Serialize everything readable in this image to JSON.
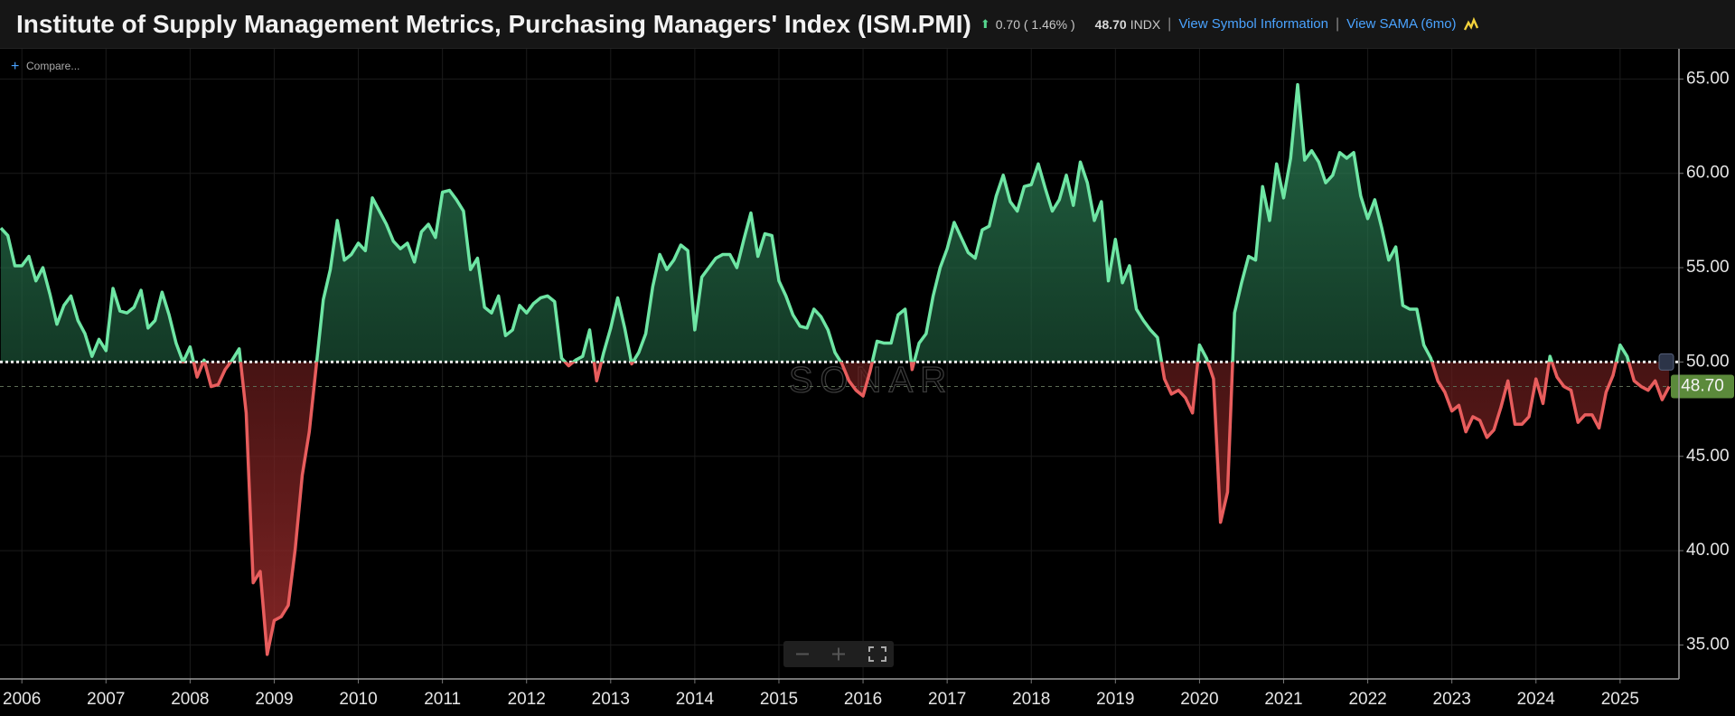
{
  "header": {
    "title": "Institute of Supply Management Metrics, Purchasing Managers' Index (ISM.PMI)",
    "change": "0.70 ( 1.46% )",
    "last": "48.70",
    "unit": "INDX",
    "links": [
      "View Symbol Information",
      "View SAMA (6mo)"
    ]
  },
  "compare": "Compare...",
  "chart_data": {
    "type": "line",
    "watermark": "SONAR",
    "x": [
      "2005-10",
      "2005-11",
      "2005-12",
      "2006-01",
      "2006-02",
      "2006-03",
      "2006-04",
      "2006-05",
      "2006-06",
      "2006-07",
      "2006-08",
      "2006-09",
      "2006-10",
      "2006-11",
      "2006-12",
      "2007-01",
      "2007-02",
      "2007-03",
      "2007-04",
      "2007-05",
      "2007-06",
      "2007-07",
      "2007-08",
      "2007-09",
      "2007-10",
      "2007-11",
      "2007-12",
      "2008-01",
      "2008-02",
      "2008-03",
      "2008-04",
      "2008-05",
      "2008-06",
      "2008-07",
      "2008-08",
      "2008-09",
      "2008-10",
      "2008-11",
      "2008-12",
      "2009-01",
      "2009-02",
      "2009-03",
      "2009-04",
      "2009-05",
      "2009-06",
      "2009-07",
      "2009-08",
      "2009-09",
      "2009-10",
      "2009-11",
      "2009-12",
      "2010-01",
      "2010-02",
      "2010-03",
      "2010-04",
      "2010-05",
      "2010-06",
      "2010-07",
      "2010-08",
      "2010-09",
      "2010-10",
      "2010-11",
      "2010-12",
      "2011-01",
      "2011-02",
      "2011-03",
      "2011-04",
      "2011-05",
      "2011-06",
      "2011-07",
      "2011-08",
      "2011-09",
      "2011-10",
      "2011-11",
      "2011-12",
      "2012-01",
      "2012-02",
      "2012-03",
      "2012-04",
      "2012-05",
      "2012-06",
      "2012-07",
      "2012-08",
      "2012-09",
      "2012-10",
      "2012-11",
      "2012-12",
      "2013-01",
      "2013-02",
      "2013-03",
      "2013-04",
      "2013-05",
      "2013-06",
      "2013-07",
      "2013-08",
      "2013-09",
      "2013-10",
      "2013-11",
      "2013-12",
      "2014-01",
      "2014-02",
      "2014-03",
      "2014-04",
      "2014-05",
      "2014-06",
      "2014-07",
      "2014-08",
      "2014-09",
      "2014-10",
      "2014-11",
      "2014-12",
      "2015-01",
      "2015-02",
      "2015-03",
      "2015-04",
      "2015-05",
      "2015-06",
      "2015-07",
      "2015-08",
      "2015-09",
      "2015-10",
      "2015-11",
      "2015-12",
      "2016-01",
      "2016-02",
      "2016-03",
      "2016-04",
      "2016-05",
      "2016-06",
      "2016-07",
      "2016-08",
      "2016-09",
      "2016-10",
      "2016-11",
      "2016-12",
      "2017-01",
      "2017-02",
      "2017-03",
      "2017-04",
      "2017-05",
      "2017-06",
      "2017-07",
      "2017-08",
      "2017-09",
      "2017-10",
      "2017-11",
      "2017-12",
      "2018-01",
      "2018-02",
      "2018-03",
      "2018-04",
      "2018-05",
      "2018-06",
      "2018-07",
      "2018-08",
      "2018-09",
      "2018-10",
      "2018-11",
      "2018-12",
      "2019-01",
      "2019-02",
      "2019-03",
      "2019-04",
      "2019-05",
      "2019-06",
      "2019-07",
      "2019-08",
      "2019-09",
      "2019-10",
      "2019-11",
      "2019-12",
      "2020-01",
      "2020-02",
      "2020-03",
      "2020-04",
      "2020-05",
      "2020-06",
      "2020-07",
      "2020-08",
      "2020-09",
      "2020-10",
      "2020-11",
      "2020-12",
      "2021-01",
      "2021-02",
      "2021-03",
      "2021-04",
      "2021-05",
      "2021-06",
      "2021-07",
      "2021-08",
      "2021-09",
      "2021-10",
      "2021-11",
      "2021-12",
      "2022-01",
      "2022-02",
      "2022-03",
      "2022-04",
      "2022-05",
      "2022-06",
      "2022-07",
      "2022-08",
      "2022-09",
      "2022-10",
      "2022-11",
      "2022-12",
      "2023-01",
      "2023-02",
      "2023-03",
      "2023-04",
      "2023-05",
      "2023-06",
      "2023-07",
      "2023-08",
      "2023-09",
      "2023-10",
      "2023-11",
      "2023-12",
      "2024-01",
      "2024-02",
      "2024-03",
      "2024-04",
      "2024-05",
      "2024-06",
      "2024-07",
      "2024-08",
      "2024-09",
      "2024-10",
      "2024-11",
      "2024-12",
      "2025-01",
      "2025-02",
      "2025-03",
      "2025-04",
      "2025-05",
      "2025-06",
      "2025-07",
      "2025-08"
    ],
    "values": [
      57.1,
      56.7,
      55.1,
      55.1,
      55.6,
      54.3,
      55.0,
      53.6,
      52.0,
      53.0,
      53.5,
      52.2,
      51.5,
      50.3,
      51.2,
      50.6,
      53.9,
      52.7,
      52.6,
      52.9,
      53.8,
      51.8,
      52.2,
      53.7,
      52.5,
      51.0,
      50.0,
      50.8,
      49.2,
      50.1,
      48.7,
      48.8,
      49.6,
      50.1,
      50.7,
      47.3,
      38.3,
      38.9,
      34.5,
      36.3,
      36.5,
      37.1,
      40.1,
      44.0,
      46.3,
      49.8,
      53.3,
      54.9,
      57.5,
      55.4,
      55.7,
      56.3,
      55.9,
      58.7,
      58.0,
      57.3,
      56.4,
      56.0,
      56.3,
      55.3,
      56.9,
      57.3,
      56.6,
      59.0,
      59.1,
      58.6,
      58.0,
      54.9,
      55.5,
      52.9,
      52.6,
      53.5,
      51.4,
      51.7,
      53.0,
      52.6,
      53.1,
      53.4,
      53.5,
      53.2,
      50.2,
      49.8,
      50.1,
      50.3,
      51.7,
      49.0,
      50.5,
      51.8,
      53.4,
      51.8,
      49.9,
      50.5,
      51.5,
      54.0,
      55.7,
      54.9,
      55.4,
      56.2,
      55.9,
      51.7,
      54.5,
      55.0,
      55.5,
      55.7,
      55.7,
      55.0,
      56.5,
      57.9,
      55.6,
      56.8,
      56.7,
      54.3,
      53.5,
      52.5,
      51.9,
      51.8,
      52.8,
      52.4,
      51.7,
      50.5,
      49.9,
      49.0,
      48.5,
      48.2,
      49.5,
      51.1,
      51.0,
      51.0,
      52.5,
      52.8,
      49.6,
      51.0,
      51.5,
      53.5,
      55.0,
      56.0,
      57.4,
      56.6,
      55.8,
      55.5,
      57.0,
      57.2,
      58.8,
      59.9,
      58.5,
      58.0,
      59.3,
      59.4,
      60.5,
      59.2,
      58.0,
      58.6,
      59.9,
      58.3,
      60.6,
      59.5,
      57.5,
      58.5,
      54.3,
      56.5,
      54.2,
      55.1,
      52.8,
      52.2,
      51.7,
      51.3,
      49.1,
      48.3,
      48.5,
      48.1,
      47.3,
      50.9,
      50.2,
      49.1,
      41.5,
      43.1,
      52.6,
      54.2,
      55.6,
      55.4,
      59.3,
      57.5,
      60.5,
      58.7,
      60.8,
      64.7,
      60.7,
      61.2,
      60.6,
      59.5,
      59.9,
      61.1,
      60.8,
      61.1,
      58.8,
      57.6,
      58.6,
      57.1,
      55.4,
      56.1,
      53.0,
      52.8,
      52.8,
      50.9,
      50.2,
      49.0,
      48.4,
      47.4,
      47.7,
      46.3,
      47.1,
      46.9,
      46.0,
      46.4,
      47.6,
      49.0,
      46.7,
      46.7,
      47.1,
      49.1,
      47.8,
      50.3,
      49.2,
      48.7,
      48.5,
      46.8,
      47.2,
      47.2,
      46.5,
      48.4,
      49.3,
      50.9,
      50.3,
      49.0,
      48.7,
      48.5,
      49.0,
      48.0,
      48.7
    ],
    "threshold": 50,
    "color_above": "#6ee6a4",
    "color_below": "#e85d5d",
    "last_value": {
      "value": 48.7,
      "label": "48.70"
    },
    "xlim": [
      2005.74,
      2025.7
    ],
    "xticks": [
      2006,
      2007,
      2008,
      2009,
      2010,
      2011,
      2012,
      2013,
      2014,
      2015,
      2016,
      2017,
      2018,
      2019,
      2020,
      2021,
      2022,
      2023,
      2024,
      2025
    ],
    "ylim": [
      33.2,
      66.6
    ],
    "yticks": [
      {
        "value": 35,
        "label": "35.00"
      },
      {
        "value": 40,
        "label": "40.00"
      },
      {
        "value": 45,
        "label": "45.00"
      },
      {
        "value": 50,
        "label": "50.00"
      },
      {
        "value": 55,
        "label": "55.00"
      },
      {
        "value": 60,
        "label": "60.00"
      },
      {
        "value": 65,
        "label": "65.00"
      }
    ],
    "grid": true
  }
}
